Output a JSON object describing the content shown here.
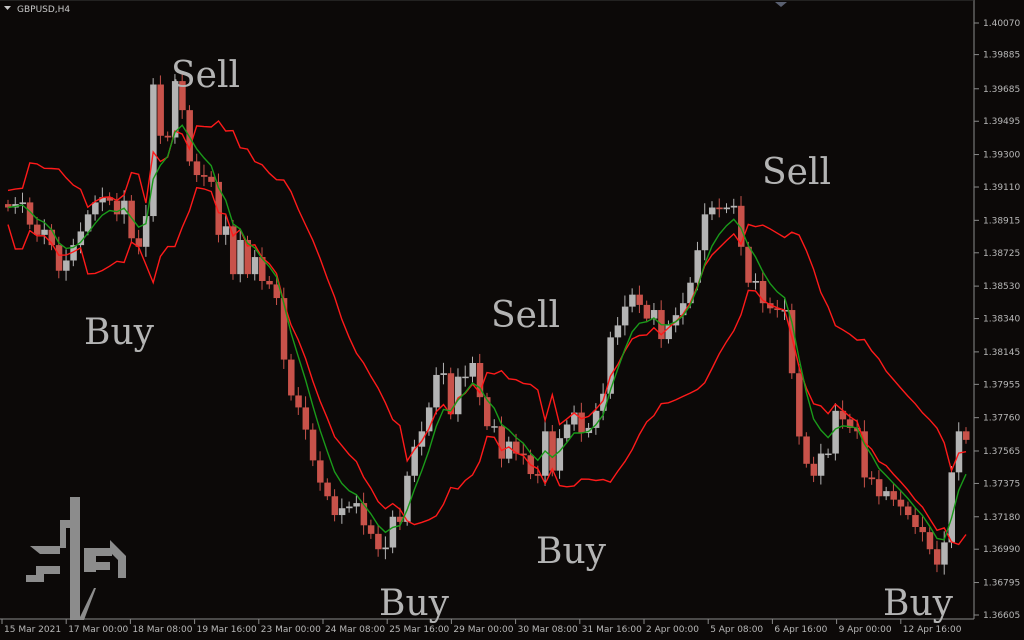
{
  "window": {
    "symbol_label": "GBPUSD,H4"
  },
  "colors": {
    "background": "#0c0908",
    "bull": "#b4b4b4",
    "bear": "#c8524a",
    "upper_band": "#ff1a1a",
    "lower_band": "#ff1a1a",
    "midline": "#1a9a1a",
    "axis": "#8a8a8a",
    "signal_text": "#b4b4b4",
    "logo": "#8c8c8c"
  },
  "signals": [
    {
      "label": "Sell",
      "name": "sell-signal-1"
    },
    {
      "label": "Buy",
      "name": "buy-signal-1"
    },
    {
      "label": "Sell",
      "name": "sell-signal-2"
    },
    {
      "label": "Buy",
      "name": "buy-signal-2"
    },
    {
      "label": "Buy",
      "name": "buy-signal-3"
    },
    {
      "label": "Sell",
      "name": "sell-signal-3"
    },
    {
      "label": "Buy",
      "name": "buy-signal-4"
    }
  ],
  "logo": {
    "icon": "ph-logo-icon"
  },
  "chart_data": {
    "type": "candlestick",
    "title": "GBPUSD,H4",
    "ylim": [
      1.36605,
      1.4007
    ],
    "y_ticks": [
      "1.40070",
      "1.39885",
      "1.39685",
      "1.39495",
      "1.39300",
      "1.39110",
      "1.38915",
      "1.38725",
      "1.38530",
      "1.38340",
      "1.38145",
      "1.37955",
      "1.37760",
      "1.37565",
      "1.37375",
      "1.37180",
      "1.36990",
      "1.36795",
      "1.36605"
    ],
    "x_ticks": [
      "15 Mar 2021",
      "17 Mar 00:00",
      "18 Mar 08:00",
      "19 Mar 16:00",
      "23 Mar 00:00",
      "24 Mar 08:00",
      "25 Mar 16:00",
      "29 Mar 00:00",
      "30 Mar 08:00",
      "31 Mar 16:00",
      "2 Apr 00:00",
      "5 Apr 08:00",
      "6 Apr 16:00",
      "9 Apr 00:00",
      "12 Apr 16:00"
    ],
    "grid": false,
    "series": [
      {
        "name": "",
        "values": [
          1.3899,
          1.3901,
          1.3902,
          1.3889,
          1.3883,
          1.3886,
          1.3877,
          1.3862,
          1.3868,
          1.3877,
          1.3885,
          1.3895,
          1.3902,
          1.3905,
          1.3903,
          1.3895,
          1.3903,
          1.3881,
          1.3876,
          1.3894,
          1.3971,
          1.3941,
          1.394,
          1.3973,
          1.3956,
          1.3926,
          1.3918,
          1.3917,
          1.3914,
          1.3883,
          1.3888,
          1.386,
          1.388,
          1.386,
          1.387,
          1.3856,
          1.3854,
          1.3846,
          1.381,
          1.3789,
          1.3782,
          1.3769,
          1.3751,
          1.3738,
          1.373,
          1.3719,
          1.3723,
          1.3724,
          1.3726,
          1.3713,
          1.3708,
          1.3699,
          1.37,
          1.3718,
          1.3715,
          1.3742,
          1.3759,
          1.3768,
          1.3782,
          1.3801,
          1.3802,
          1.3778,
          1.38,
          1.38,
          1.3808,
          1.3788,
          1.3771,
          1.3771,
          1.3752,
          1.3762,
          1.3755,
          1.3754,
          1.3743,
          1.3742,
          1.3768,
          1.3745,
          1.3764,
          1.3772,
          1.3779,
          1.3767,
          1.377,
          1.378,
          1.379,
          1.3823,
          1.383,
          1.3841,
          1.3848,
          1.3842,
          1.3834,
          1.3839,
          1.3822,
          1.383,
          1.3836,
          1.3843,
          1.3855,
          1.3874,
          1.3895,
          1.3899,
          1.3898,
          1.3899,
          1.39,
          1.3876,
          1.3855,
          1.3856,
          1.3843,
          1.384,
          1.3839,
          1.3839,
          1.3802,
          1.3765,
          1.3749,
          1.3742,
          1.3755,
          1.3755,
          1.378,
          1.3775,
          1.377,
          1.3768,
          1.3741,
          1.374,
          1.373,
          1.3733,
          1.3728,
          1.3724,
          1.3719,
          1.3712,
          1.3709,
          1.3699,
          1.369,
          1.3703,
          1.3744,
          1.3768,
          1.3763
        ]
      }
    ]
  }
}
